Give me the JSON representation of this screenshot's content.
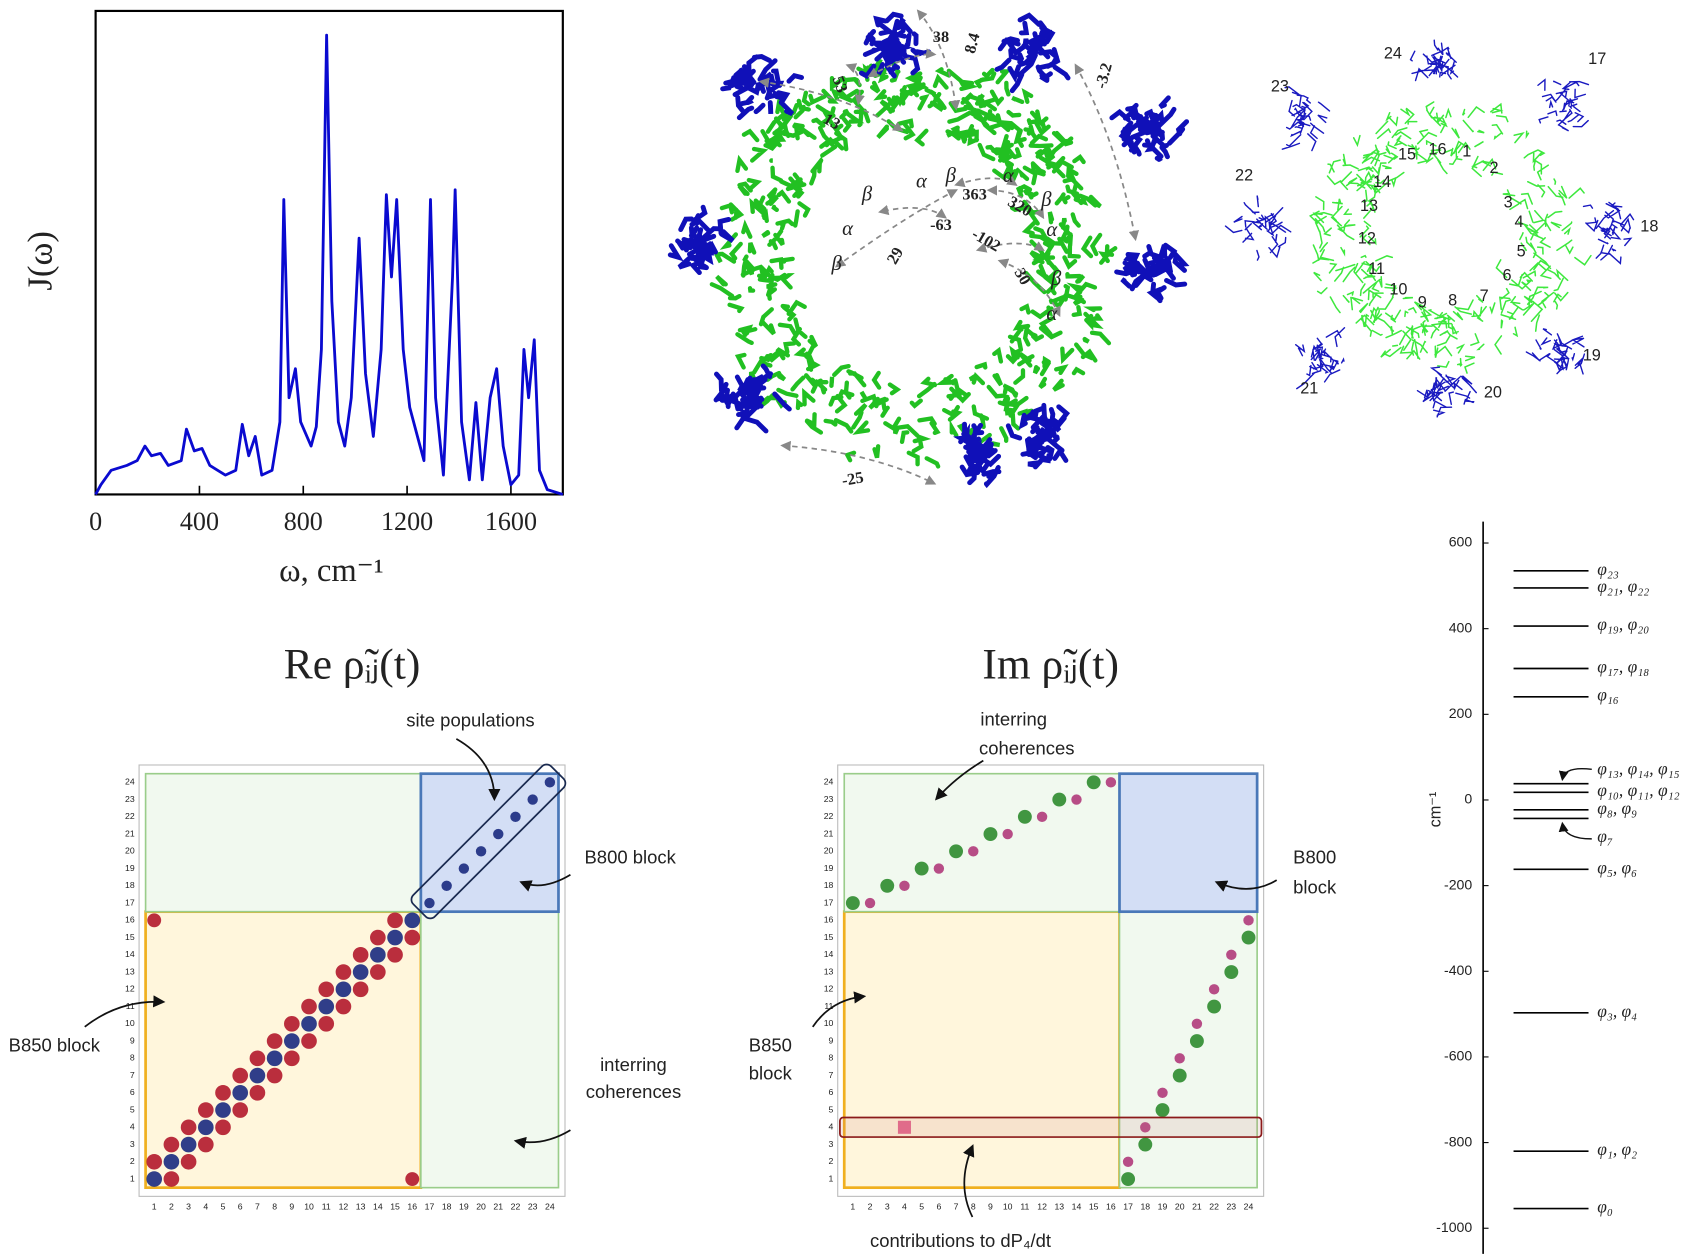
{
  "chart_data": [
    {
      "type": "line",
      "ylabel": "J(ω)",
      "xlabel": "ω, cm⁻¹",
      "xlim": [
        0,
        1800
      ],
      "xticks": [
        0,
        400,
        800,
        1200,
        1600
      ],
      "ylim": [
        0,
        1
      ],
      "color": "#0a0ad0",
      "x": [
        0,
        20,
        60,
        120,
        160,
        190,
        215,
        250,
        280,
        330,
        350,
        380,
        410,
        440,
        470,
        500,
        540,
        565,
        590,
        615,
        640,
        680,
        710,
        725,
        745,
        770,
        790,
        830,
        850,
        870,
        890,
        910,
        935,
        960,
        985,
        1015,
        1040,
        1070,
        1100,
        1120,
        1140,
        1160,
        1185,
        1210,
        1240,
        1265,
        1290,
        1310,
        1340,
        1375,
        1385,
        1410,
        1440,
        1465,
        1490,
        1520,
        1545,
        1570,
        1600,
        1630,
        1650,
        1668,
        1690,
        1710,
        1740,
        1800
      ],
      "values": [
        0,
        0.02,
        0.05,
        0.06,
        0.07,
        0.1,
        0.08,
        0.085,
        0.06,
        0.07,
        0.135,
        0.09,
        0.095,
        0.06,
        0.05,
        0.04,
        0.05,
        0.145,
        0.08,
        0.12,
        0.04,
        0.05,
        0.15,
        0.61,
        0.2,
        0.26,
        0.15,
        0.1,
        0.14,
        0.3,
        0.95,
        0.4,
        0.15,
        0.1,
        0.2,
        0.53,
        0.25,
        0.12,
        0.3,
        0.62,
        0.45,
        0.61,
        0.3,
        0.18,
        0.12,
        0.07,
        0.61,
        0.2,
        0.04,
        0.45,
        0.63,
        0.15,
        0.03,
        0.19,
        0.03,
        0.2,
        0.26,
        0.1,
        0.02,
        0.04,
        0.3,
        0.2,
        0.32,
        0.05,
        0.01,
        0
      ]
    },
    {
      "type": "matrix",
      "title": "Re ρ̃ᵢⱼ(t)",
      "xlim": [
        0.5,
        24.5
      ],
      "ylim": [
        0.5,
        24.5
      ],
      "xticks": [
        1,
        2,
        3,
        4,
        5,
        6,
        7,
        8,
        9,
        10,
        11,
        12,
        13,
        14,
        15,
        16,
        17,
        18,
        19,
        20,
        21,
        22,
        23,
        24
      ],
      "yticks": [
        1,
        2,
        3,
        4,
        5,
        6,
        7,
        8,
        9,
        10,
        11,
        12,
        13,
        14,
        15,
        16,
        17,
        18,
        19,
        20,
        21,
        22,
        23,
        24
      ],
      "positive_color": "#b2182b",
      "negative_color": "#1a2a80",
      "x": [
        1,
        2,
        3,
        4,
        5,
        6,
        7,
        8,
        9,
        10,
        11,
        12,
        13,
        14,
        15,
        16,
        2,
        3,
        4,
        5,
        6,
        7,
        8,
        9,
        10,
        11,
        12,
        13,
        14,
        15,
        16,
        1,
        2,
        3,
        4,
        5,
        6,
        7,
        8,
        9,
        10,
        11,
        12,
        13,
        14,
        15,
        17,
        18,
        19,
        20,
        21,
        22,
        23,
        24,
        16,
        1
      ],
      "y": [
        1,
        2,
        3,
        4,
        5,
        6,
        7,
        8,
        9,
        10,
        11,
        12,
        13,
        14,
        15,
        16,
        1,
        2,
        3,
        4,
        5,
        6,
        7,
        8,
        9,
        10,
        11,
        12,
        13,
        14,
        15,
        2,
        3,
        4,
        5,
        6,
        7,
        8,
        9,
        10,
        11,
        12,
        13,
        14,
        15,
        16,
        17,
        18,
        19,
        20,
        21,
        22,
        23,
        24,
        1,
        16
      ],
      "values": [
        -0.9,
        -0.9,
        -0.9,
        -0.9,
        -0.9,
        -0.9,
        -0.9,
        -0.9,
        -0.9,
        -0.9,
        -0.9,
        -0.9,
        -0.9,
        -0.9,
        -0.9,
        -0.9,
        0.9,
        0.9,
        0.9,
        0.9,
        0.9,
        0.9,
        0.9,
        0.9,
        0.9,
        0.9,
        0.9,
        0.9,
        0.9,
        0.9,
        0.9,
        0.9,
        0.9,
        0.9,
        0.9,
        0.9,
        0.9,
        0.9,
        0.9,
        0.9,
        0.9,
        0.9,
        0.9,
        0.9,
        0.9,
        0.9,
        -0.6,
        -0.6,
        -0.6,
        -0.6,
        -0.6,
        -0.6,
        -0.6,
        -0.6,
        0.8,
        0.8
      ],
      "annotations": [
        "site populations",
        "B800 block",
        "B850 block",
        "interring",
        "coherences"
      ]
    },
    {
      "type": "matrix",
      "title": "Im ρ̃ᵢⱼ(t)",
      "xlim": [
        0.5,
        24.5
      ],
      "ylim": [
        0.5,
        24.5
      ],
      "xticks": [
        1,
        2,
        3,
        4,
        5,
        6,
        7,
        8,
        9,
        10,
        11,
        12,
        13,
        14,
        15,
        16,
        17,
        18,
        19,
        20,
        21,
        22,
        23,
        24
      ],
      "yticks": [
        1,
        2,
        3,
        4,
        5,
        6,
        7,
        8,
        9,
        10,
        11,
        12,
        13,
        14,
        15,
        16,
        17,
        18,
        19,
        20,
        21,
        22,
        23,
        24
      ],
      "positive_color": "#2e8b2e",
      "negative_color": "#b03a7a",
      "x": [
        1,
        3,
        5,
        7,
        9,
        11,
        13,
        15,
        2,
        4,
        6,
        8,
        10,
        12,
        14,
        16,
        17,
        18,
        19,
        20,
        21,
        22,
        23,
        24,
        17,
        18,
        19,
        20,
        21,
        22,
        23,
        24
      ],
      "y": [
        17,
        18,
        19,
        20,
        21,
        22,
        23,
        24,
        17,
        18,
        19,
        20,
        21,
        22,
        23,
        24,
        1,
        3,
        5,
        7,
        9,
        11,
        13,
        15,
        2,
        4,
        6,
        8,
        10,
        12,
        14,
        16
      ],
      "values": [
        0.8,
        0.8,
        0.8,
        0.8,
        0.8,
        0.8,
        0.8,
        0.8,
        -0.6,
        -0.6,
        -0.6,
        -0.6,
        -0.6,
        -0.6,
        -0.6,
        -0.6,
        0.8,
        0.8,
        0.8,
        0.8,
        0.8,
        0.8,
        0.8,
        0.8,
        -0.6,
        -0.6,
        -0.6,
        -0.6,
        -0.6,
        -0.6,
        -0.6,
        -0.6
      ],
      "annotations": [
        "interring",
        "coherences",
        "B800",
        "block",
        "B850",
        "block",
        "contributions to dP₄/dt"
      ]
    },
    {
      "type": "levels",
      "ylabel": "cm⁻¹",
      "ylim": [
        -1060,
        650
      ],
      "yticks": [
        600,
        400,
        200,
        0,
        -200,
        -400,
        -600,
        -800,
        -1000
      ],
      "color": "#000000",
      "values": [
        535,
        495,
        406,
        307,
        241,
        38,
        18,
        -23,
        -43,
        -162,
        -497,
        -820,
        -954
      ],
      "labels": [
        "φ₂₃",
        "φ₂₁, φ₂₂",
        "φ₁₉, φ₂₀",
        "φ₁₇, φ₁₈",
        "φ₁₆",
        "φ₁₃, φ₁₄, φ₁₅",
        "φ₁₀, φ₁₁, φ₁₂",
        "φ₈, φ₉",
        "φ₇",
        "φ₅, φ₆",
        "φ₃, φ₄",
        "φ₁, φ₂",
        "φ₀"
      ]
    }
  ],
  "structure": {
    "couplings": [
      "38",
      "8.4",
      "53",
      "13",
      "-3.2",
      "363",
      "320",
      "-63",
      "29",
      "-102",
      "30",
      "-25"
    ],
    "pigment_labels": [
      "α",
      "β",
      "α",
      "β",
      "β",
      "α",
      "β",
      "α",
      "β",
      "α"
    ],
    "site_numbers": [
      "24",
      "17",
      "23",
      "16",
      "1",
      "15",
      "2",
      "14",
      "22",
      "13",
      "3",
      "4",
      "18",
      "12",
      "5",
      "6",
      "11",
      "10",
      "9",
      "8",
      "7",
      "21",
      "20",
      "19"
    ]
  }
}
